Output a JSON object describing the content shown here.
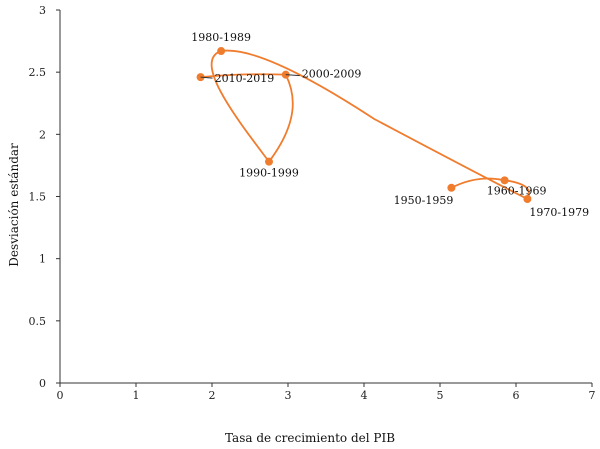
{
  "chart_data": {
    "type": "line",
    "xlabel": "Tasa de crecimiento del PIB",
    "ylabel": "Desviación estándar",
    "xlim": [
      0,
      7
    ],
    "ylim": [
      0,
      3
    ],
    "x_ticks": [
      "0",
      "1",
      "2",
      "3",
      "4",
      "5",
      "6",
      "7"
    ],
    "y_ticks": [
      "0",
      "0.5",
      "1",
      "1.5",
      "2",
      "2.5",
      "3"
    ],
    "grid": false,
    "line_color": "#F07C2E",
    "series": [
      {
        "points": [
          {
            "label": "1950-1959",
            "x": 5.15,
            "y": 1.57
          },
          {
            "label": "1960-1969",
            "x": 5.85,
            "y": 1.63
          },
          {
            "label": "1970-1979",
            "x": 6.15,
            "y": 1.48
          },
          {
            "label": "1980-1989",
            "x": 2.12,
            "y": 2.67
          },
          {
            "label": "1990-1999",
            "x": 2.75,
            "y": 1.78
          },
          {
            "label": "2000-2009",
            "x": 2.97,
            "y": 2.48
          },
          {
            "label": "2010-2019",
            "x": 1.85,
            "y": 2.46
          }
        ]
      }
    ]
  }
}
